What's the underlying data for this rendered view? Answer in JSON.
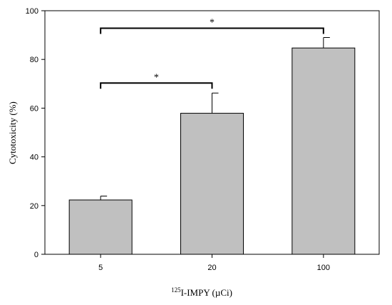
{
  "chart_data": {
    "type": "bar",
    "title": "",
    "xlabel_sup": "125",
    "xlabel": "I-IMPY (µCi)",
    "ylabel": "Cytotoxicity (%)",
    "categories": [
      "5",
      "20",
      "100"
    ],
    "values": [
      22.3,
      57.9,
      84.7
    ],
    "errors": [
      1.6,
      8.3,
      4.3
    ],
    "ylim": [
      0,
      100
    ],
    "yticks": [
      "0",
      "20",
      "40",
      "60",
      "80",
      "100"
    ],
    "significance": [
      {
        "from": 0,
        "to": 1,
        "label": "*",
        "y": 70.3
      },
      {
        "from": 0,
        "to": 2,
        "label": "*",
        "y": 92.8
      }
    ],
    "grid": false,
    "colors": {
      "bar": "#c0c0c0",
      "edge": "#000000",
      "text": "#000000"
    }
  }
}
